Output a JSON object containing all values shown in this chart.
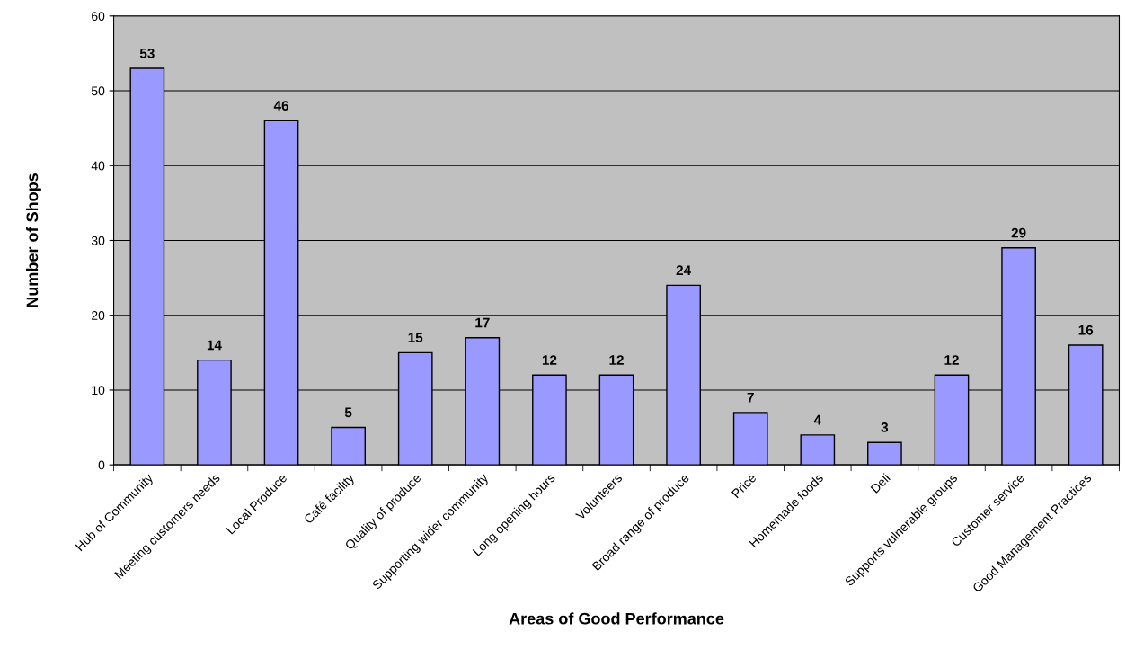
{
  "chart_data": {
    "type": "bar",
    "xlabel": "Areas of Good Performance",
    "ylabel": "Number of Shops",
    "categories": [
      "Hub of Community",
      "Meeting customers needs",
      "Local Produce",
      "Café facility",
      "Quality of produce",
      "Supporting wider community",
      "Long opening hours",
      "Volunteers",
      "Broad range of produce",
      "Price",
      "Homemade foods",
      "Deli",
      "Supports vulnerable groups",
      "Customer service",
      "Good Management Practices"
    ],
    "values": [
      53,
      14,
      46,
      5,
      15,
      17,
      12,
      12,
      24,
      7,
      4,
      3,
      12,
      29,
      16
    ],
    "color": "#9999ff",
    "ylim": [
      0,
      60
    ],
    "yticks": [
      0,
      10,
      20,
      30,
      40,
      50,
      60
    ],
    "grid": "y",
    "data_labels": true,
    "legend": false
  }
}
